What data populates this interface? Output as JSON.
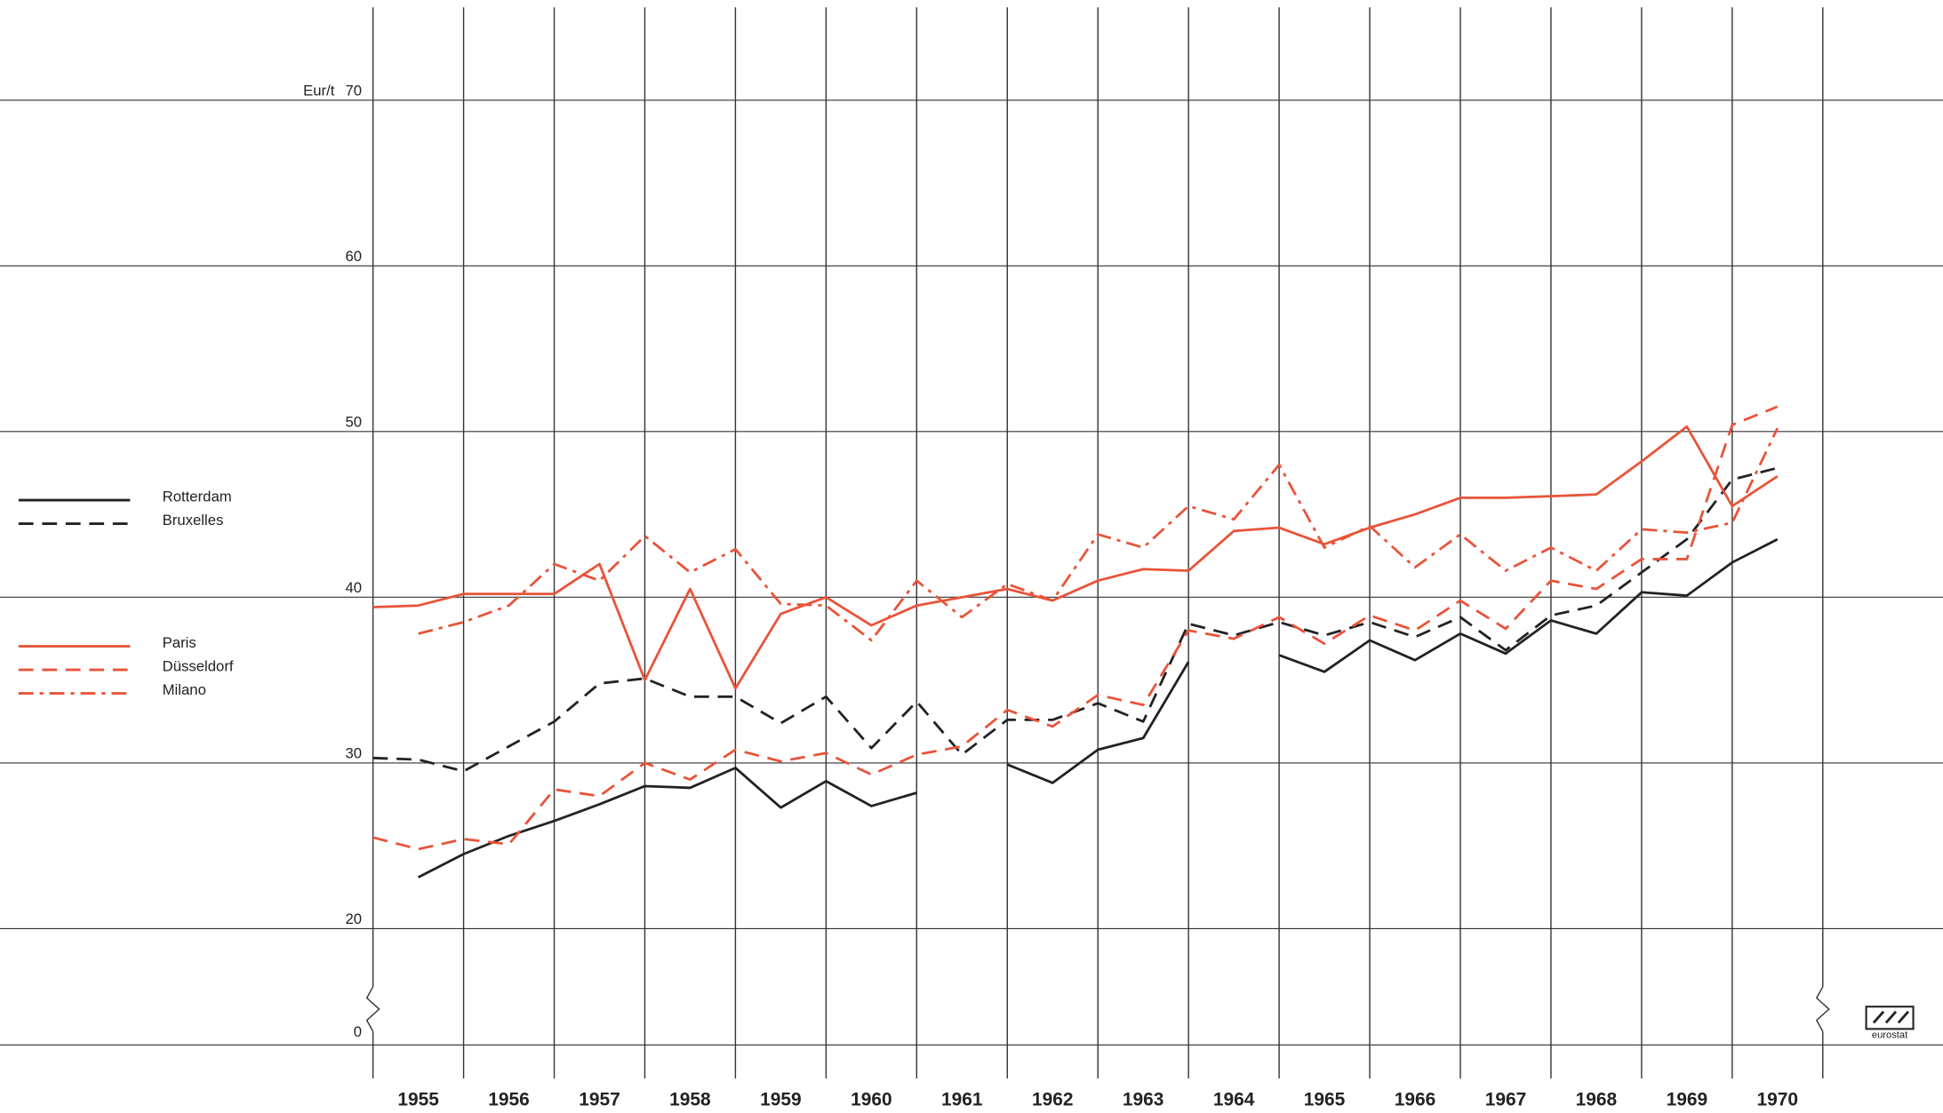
{
  "chart_data": {
    "type": "line",
    "y_label": "Eur/t",
    "xlim": [
      1955,
      1971
    ],
    "xticks": [
      1955,
      1956,
      1957,
      1958,
      1959,
      1960,
      1961,
      1962,
      1963,
      1964,
      1965,
      1966,
      1967,
      1968,
      1969,
      1970
    ],
    "ylim": [
      20,
      70
    ],
    "yticks": [
      0,
      20,
      30,
      40,
      50,
      60,
      70
    ],
    "axis_break": true,
    "grid": true,
    "legend": "left",
    "x": [
      1955,
      1955.5,
      1956,
      1956.5,
      1957,
      1957.5,
      1958,
      1958.5,
      1959,
      1959.5,
      1960,
      1960.5,
      1961,
      1961.5,
      1962,
      1962.5,
      1963,
      1963.5,
      1964,
      1964.5,
      1965,
      1965.5,
      1966,
      1966.5,
      1967,
      1967.5,
      1968,
      1968.5,
      1969,
      1969.5,
      1970,
      1970.5
    ],
    "series": [
      {
        "name": "Rotterdam",
        "color": "#222222",
        "dash": "solid",
        "values": [
          null,
          23.1,
          24.5,
          25.6,
          26.5,
          27.5,
          28.6,
          28.5,
          29.7,
          27.3,
          28.9,
          27.4,
          28.2,
          null,
          29.9,
          28.8,
          30.8,
          31.5,
          36.1,
          null,
          36.5,
          35.5,
          37.4,
          36.2,
          37.8,
          36.6,
          38.6,
          37.8,
          40.3,
          40.1,
          42.1,
          43.5
        ]
      },
      {
        "name": "Bruxelles",
        "color": "#222222",
        "dash": "dashed",
        "values": [
          30.3,
          30.2,
          29.5,
          31,
          32.5,
          34.8,
          35.1,
          34,
          34,
          32.4,
          34,
          30.9,
          33.7,
          30.5,
          32.6,
          32.6,
          33.6,
          32.5,
          38.4,
          37.7,
          38.5,
          37.7,
          38.5,
          37.6,
          38.8,
          36.8,
          38.9,
          39.5,
          41.5,
          43.5,
          47.1,
          47.8
        ]
      },
      {
        "name": "Paris",
        "color": "#e8543a",
        "dash": "solid",
        "values": [
          39.4,
          39.5,
          40.2,
          40.2,
          40.2,
          42,
          35,
          40.5,
          34.5,
          39,
          40,
          38.3,
          39.5,
          40,
          40.5,
          39.8,
          41,
          41.7,
          41.6,
          44,
          44.2,
          43.2,
          44.2,
          45,
          46,
          46,
          46.1,
          46.2,
          48.2,
          50.3,
          45.5,
          47.3
        ]
      },
      {
        "name": "Düsseldorf",
        "color": "#e8543a",
        "dash": "dashed",
        "values": [
          25.5,
          24.8,
          25.4,
          25.1,
          28.4,
          28,
          30,
          29,
          30.8,
          30.1,
          30.6,
          29.3,
          30.5,
          31,
          33.2,
          32.2,
          34.1,
          33.5,
          38,
          37.5,
          38.8,
          37.2,
          38.9,
          38,
          39.8,
          38.1,
          41,
          40.5,
          42.3,
          42.3,
          50.4,
          51.5
        ]
      },
      {
        "name": "Milano",
        "color": "#e8543a",
        "dash": "dashdot",
        "values": [
          null,
          37.8,
          38.5,
          39.5,
          42,
          41,
          43.7,
          41.5,
          42.9,
          39.6,
          39.5,
          37.4,
          41,
          38.8,
          40.8,
          39.8,
          43.8,
          43,
          45.5,
          44.7,
          48,
          43,
          44.3,
          41.8,
          43.8,
          41.6,
          43,
          41.6,
          44.1,
          43.9,
          44.5,
          50.2
        ]
      }
    ],
    "logo_text": "eurostat"
  }
}
